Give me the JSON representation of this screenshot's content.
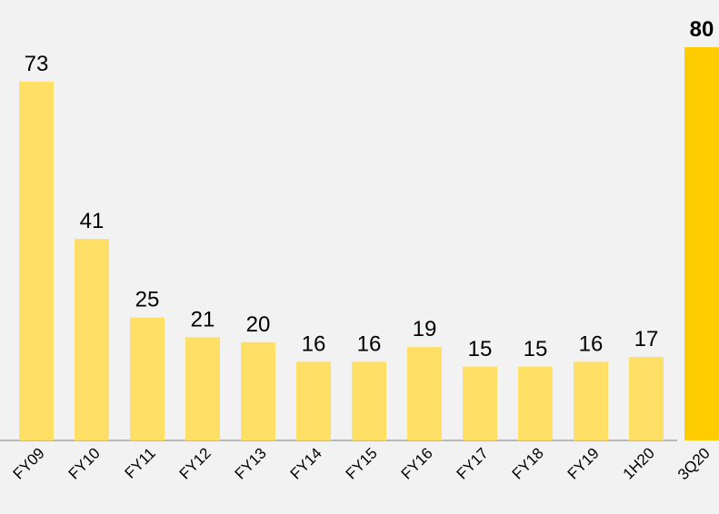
{
  "chart_data": {
    "type": "bar",
    "categories": [
      "FY09",
      "FY10",
      "FY11",
      "FY12",
      "FY13",
      "FY14",
      "FY15",
      "FY16",
      "FY17",
      "FY18",
      "FY19",
      "1H20",
      "3Q20"
    ],
    "values": [
      73,
      41,
      25,
      21,
      20,
      16,
      16,
      19,
      15,
      15,
      16,
      17,
      80
    ],
    "colors": [
      "#ffdf66",
      "#ffdf66",
      "#ffdf66",
      "#ffdf66",
      "#ffdf66",
      "#ffdf66",
      "#ffdf66",
      "#ffdf66",
      "#ffdf66",
      "#ffdf66",
      "#ffdf66",
      "#ffdf66",
      "#ffcc00"
    ]
  }
}
